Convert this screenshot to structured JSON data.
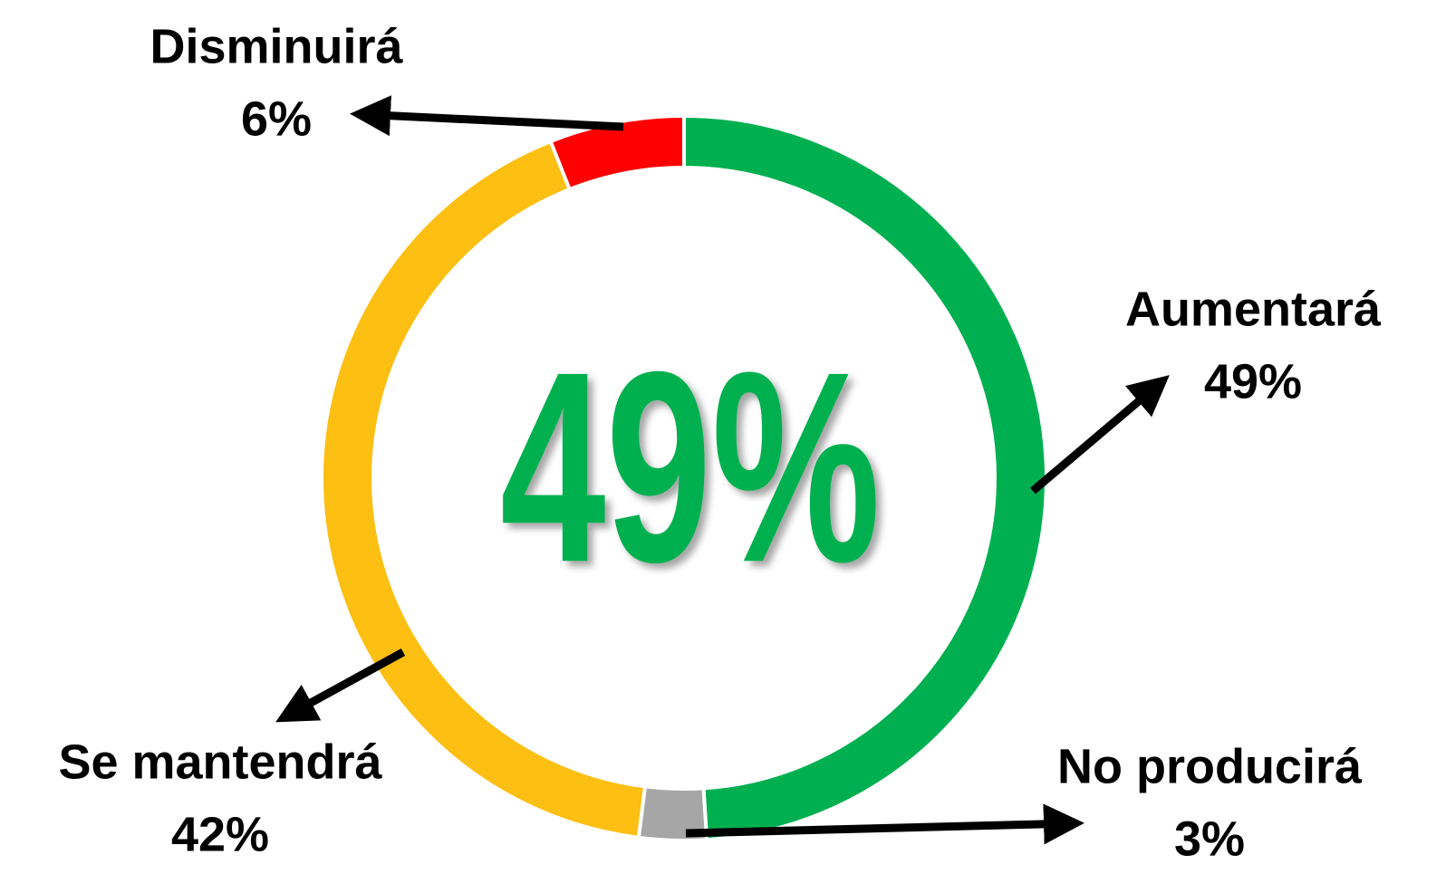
{
  "chart_data": {
    "type": "donut",
    "center_label": "49%",
    "categories": [
      "Aumentará",
      "No producirá",
      "Se mantendrá",
      "Disminuirá"
    ],
    "values": [
      49,
      3,
      42,
      6
    ],
    "value_labels": [
      "49%",
      "3%",
      "42%",
      "6%"
    ],
    "colors": [
      "#00b050",
      "#a6a6a6",
      "#fcbf12",
      "#ff0000"
    ]
  }
}
